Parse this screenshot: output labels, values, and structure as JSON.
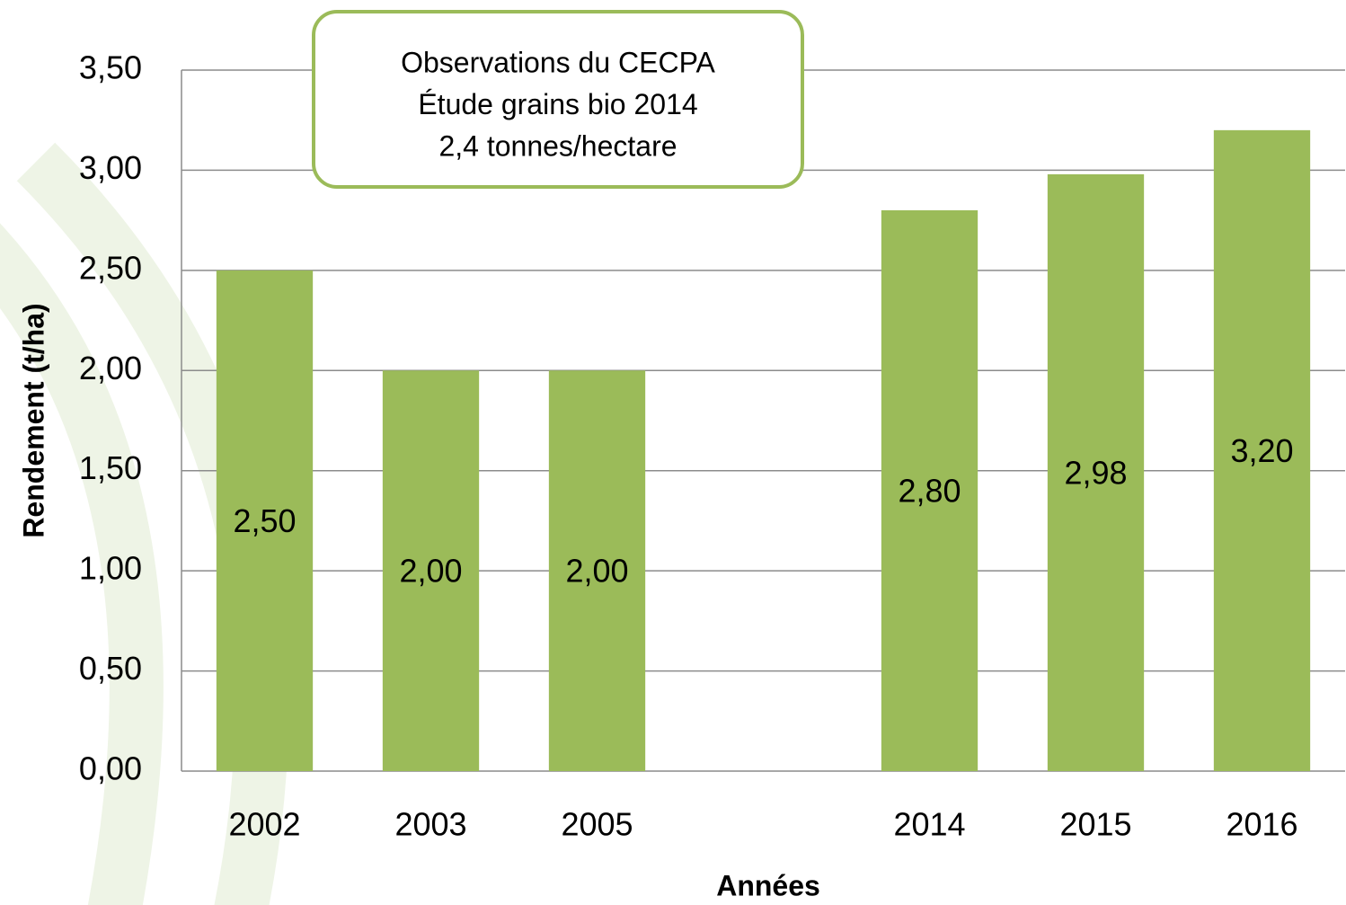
{
  "chart_data": {
    "type": "bar",
    "categories": [
      "2002",
      "2003",
      "2005",
      null,
      "2014",
      "2015",
      "2016"
    ],
    "values": [
      2.5,
      2.0,
      2.0,
      null,
      2.8,
      2.98,
      3.2
    ],
    "value_labels": [
      "2,50",
      "2,00",
      "2,00",
      null,
      "2,80",
      "2,98",
      "3,20"
    ],
    "color": "#9bbb59",
    "ylim": [
      0,
      3.5
    ],
    "yticks": [
      {
        "value": 0,
        "label": "0,00"
      },
      {
        "value": 0.5,
        "label": "0,50"
      },
      {
        "value": 1,
        "label": "1,00"
      },
      {
        "value": 1.5,
        "label": "1,50"
      },
      {
        "value": 2,
        "label": "2,00"
      },
      {
        "value": 2.5,
        "label": "2,50"
      },
      {
        "value": 3,
        "label": "3,00"
      },
      {
        "value": 3.5,
        "label": "3,50"
      }
    ],
    "grid": true,
    "y_label": "Rendement (t/ha)",
    "x_label": "Années",
    "annotation": [
      "Observations du CECPA",
      "Étude grains bio 2014",
      "2,4 tonnes/hectare"
    ]
  }
}
